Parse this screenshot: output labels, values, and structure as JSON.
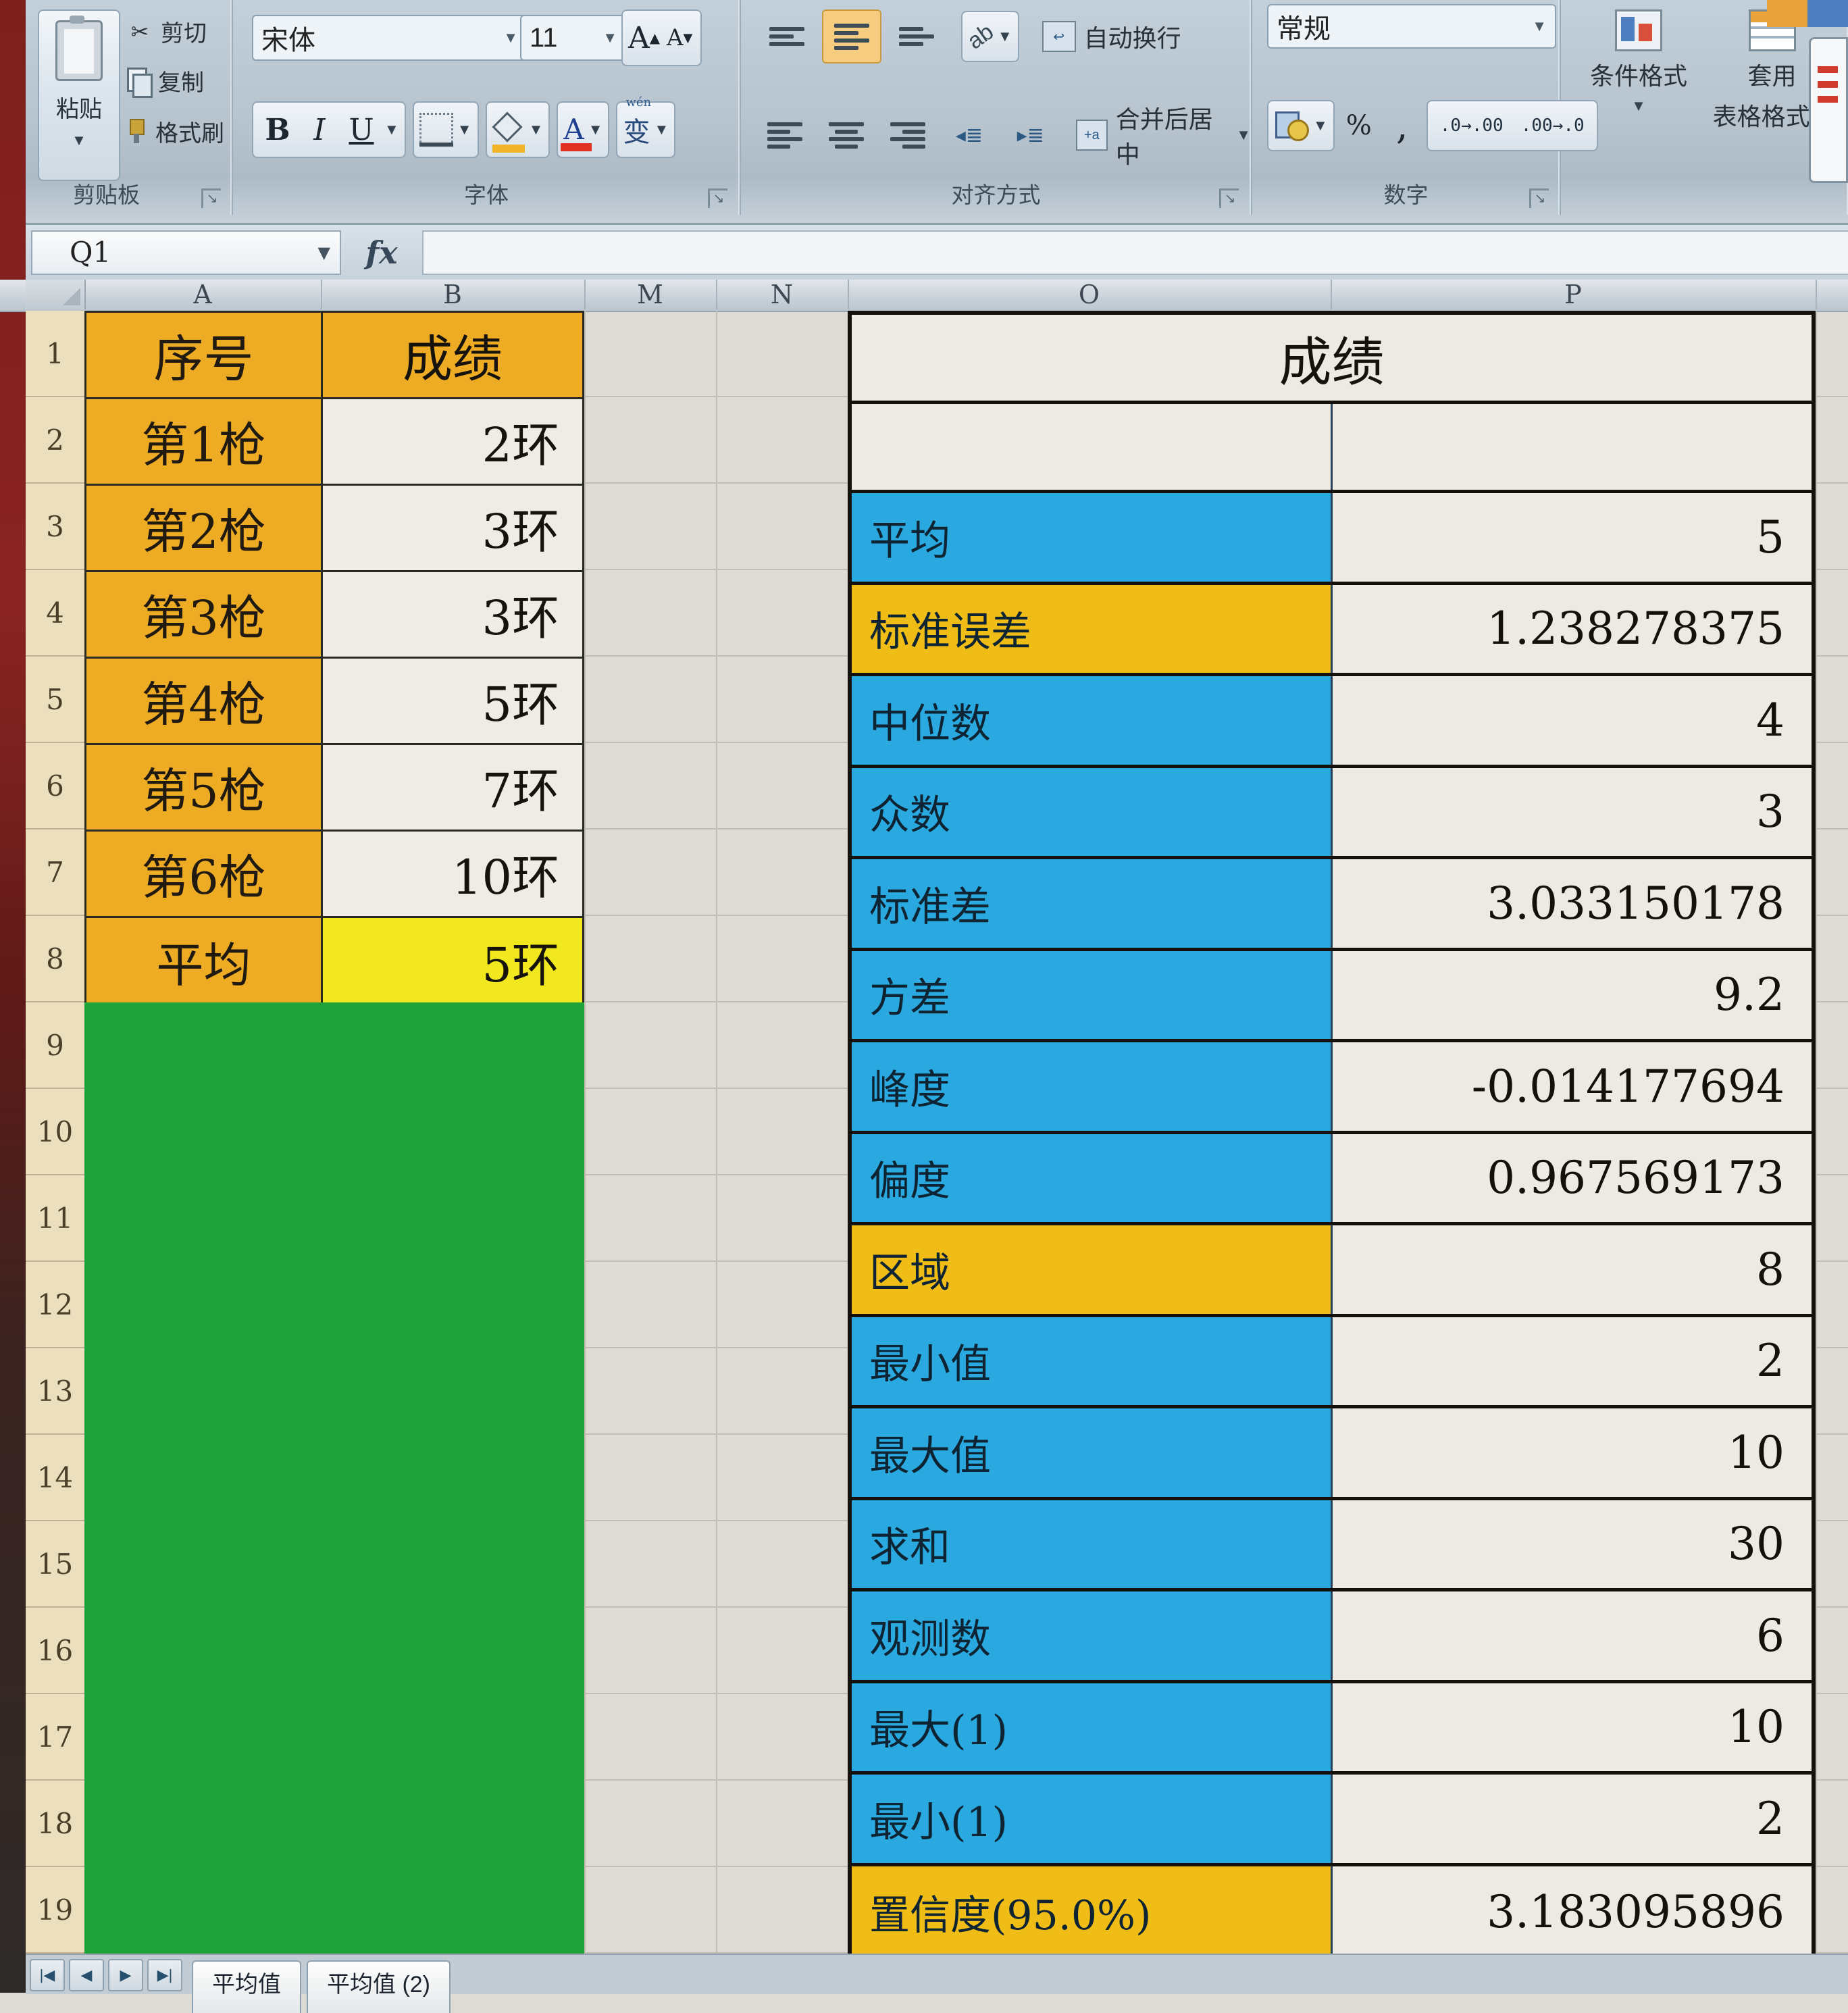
{
  "ribbon": {
    "clipboard": {
      "group_label": "剪贴板",
      "paste_label": "粘贴",
      "cut_label": "剪切",
      "copy_label": "复制",
      "format_painter_label": "格式刷"
    },
    "font": {
      "group_label": "字体",
      "font_name": "宋体",
      "font_size": "11",
      "grow_font": "A",
      "shrink_font": "A",
      "bold": "B",
      "italic": "I",
      "underline": "U",
      "phonetic": "变"
    },
    "alignment": {
      "group_label": "对齐方式",
      "wrap_label": "自动换行",
      "merge_label": "合并后居中"
    },
    "number": {
      "group_label": "数字",
      "format_value": "常规",
      "percent": "%",
      "comma": ",",
      "inc_decimal": ".0→.00",
      "dec_decimal": ".00→.0"
    },
    "styles": {
      "conditional_label": "条件格式",
      "format_table_label_1": "套用",
      "format_table_label_2": "表格格式"
    }
  },
  "formula_bar": {
    "name_box_value": "Q1",
    "fx_label": "fx"
  },
  "sheet": {
    "columns": [
      "A",
      "B",
      "M",
      "N",
      "O",
      "P"
    ],
    "row_numbers": [
      "1",
      "2",
      "3",
      "4",
      "5",
      "6",
      "7",
      "8",
      "9",
      "10",
      "11",
      "12",
      "13",
      "14",
      "15",
      "16",
      "17",
      "18",
      "19"
    ]
  },
  "left_table": {
    "headers": [
      "序号",
      "成绩"
    ],
    "rows": [
      [
        "第1枪",
        "2环"
      ],
      [
        "第2枪",
        "3环"
      ],
      [
        "第3枪",
        "3环"
      ],
      [
        "第4枪",
        "5环"
      ],
      [
        "第5枪",
        "7环"
      ],
      [
        "第6枪",
        "10环"
      ]
    ],
    "average_label": "平均",
    "average_value": "5环"
  },
  "stats_table": {
    "title": "成绩",
    "rows": [
      {
        "label": "平均",
        "value": "5",
        "style": "blue"
      },
      {
        "label": "标准误差",
        "value": "1.238278375",
        "style": "orange"
      },
      {
        "label": "中位数",
        "value": "4",
        "style": "blue"
      },
      {
        "label": "众数",
        "value": "3",
        "style": "blue"
      },
      {
        "label": "标准差",
        "value": "3.033150178",
        "style": "blue"
      },
      {
        "label": "方差",
        "value": "9.2",
        "style": "blue"
      },
      {
        "label": "峰度",
        "value": "-0.014177694",
        "style": "blue"
      },
      {
        "label": "偏度",
        "value": "0.967569173",
        "style": "blue"
      },
      {
        "label": "区域",
        "value": "8",
        "style": "orange"
      },
      {
        "label": "最小值",
        "value": "2",
        "style": "blue"
      },
      {
        "label": "最大值",
        "value": "10",
        "style": "blue"
      },
      {
        "label": "求和",
        "value": "30",
        "style": "blue"
      },
      {
        "label": "观测数",
        "value": "6",
        "style": "blue"
      },
      {
        "label": "最大(1)",
        "value": "10",
        "style": "blue"
      },
      {
        "label": "最小(1)",
        "value": "2",
        "style": "blue"
      },
      {
        "label": "置信度(95.0%)",
        "value": "3.183095896",
        "style": "orange"
      }
    ]
  },
  "sheet_tabs": [
    "平均值",
    "平均值 (2)"
  ],
  "colors": {
    "gold": "#eeac25",
    "yellow": "#f1e81f",
    "green": "#1ea33b",
    "blue": "#2aa9e0",
    "label_orange": "#f0bd17",
    "ribbon_bg": "#b7c3cd",
    "sheet_bg": "#dedad4",
    "row_header_bg": "#ecdfbe"
  }
}
